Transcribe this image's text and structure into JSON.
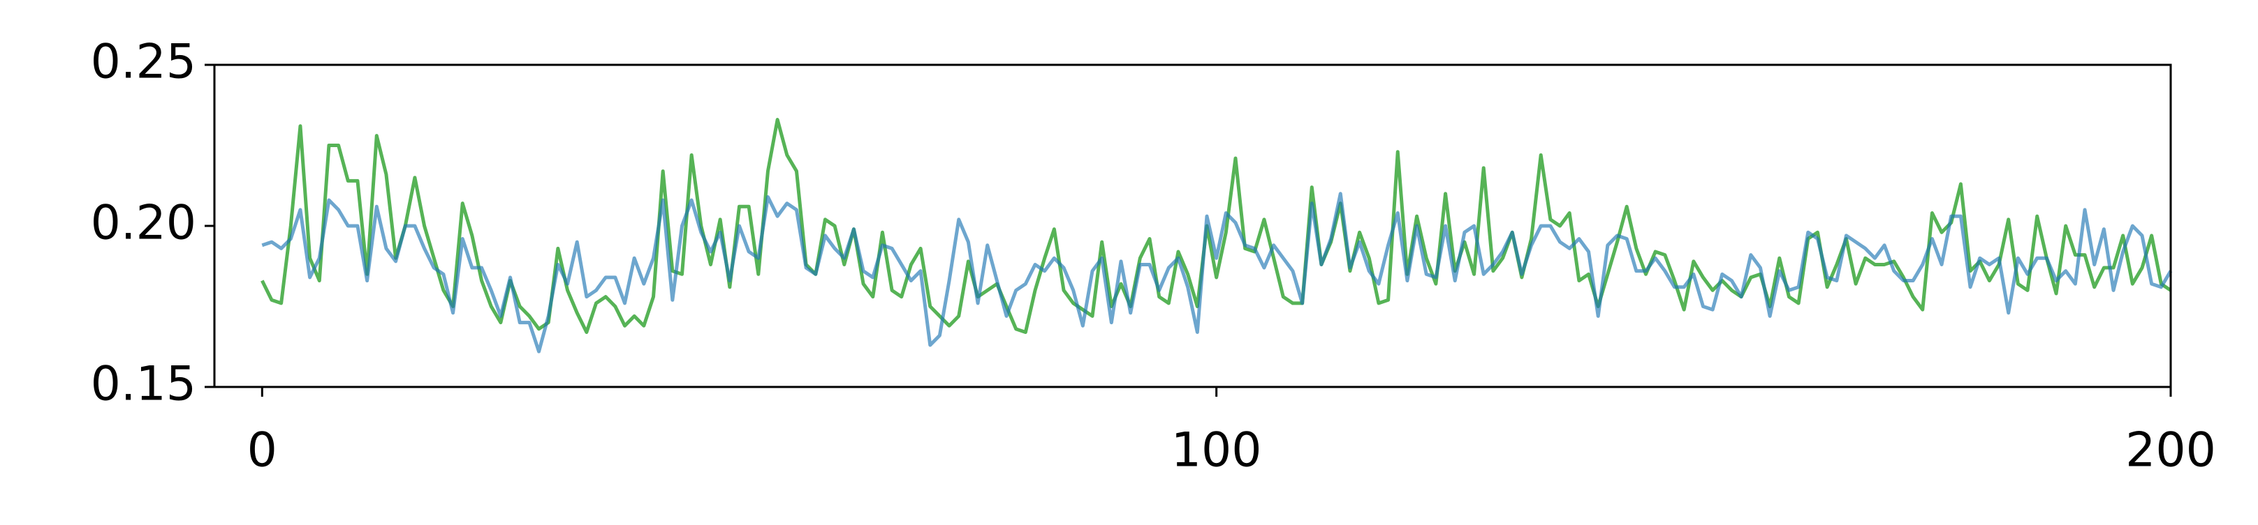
{
  "chart_data": {
    "type": "line",
    "x": [
      0,
      1,
      2,
      3,
      4,
      5,
      6,
      7,
      8,
      9,
      10,
      11,
      12,
      13,
      14,
      15,
      16,
      17,
      18,
      19,
      20,
      21,
      22,
      23,
      24,
      25,
      26,
      27,
      28,
      29,
      30,
      31,
      32,
      33,
      34,
      35,
      36,
      37,
      38,
      39,
      40,
      41,
      42,
      43,
      44,
      45,
      46,
      47,
      48,
      49,
      50,
      51,
      52,
      53,
      54,
      55,
      56,
      57,
      58,
      59,
      60,
      61,
      62,
      63,
      64,
      65,
      66,
      67,
      68,
      69,
      70,
      71,
      72,
      73,
      74,
      75,
      76,
      77,
      78,
      79,
      80,
      81,
      82,
      83,
      84,
      85,
      86,
      87,
      88,
      89,
      90,
      91,
      92,
      93,
      94,
      95,
      96,
      97,
      98,
      99,
      100,
      101,
      102,
      103,
      104,
      105,
      106,
      107,
      108,
      109,
      110,
      111,
      112,
      113,
      114,
      115,
      116,
      117,
      118,
      119,
      120,
      121,
      122,
      123,
      124,
      125,
      126,
      127,
      128,
      129,
      130,
      131,
      132,
      133,
      134,
      135,
      136,
      137,
      138,
      139,
      140,
      141,
      142,
      143,
      144,
      145,
      146,
      147,
      148,
      149,
      150,
      151,
      152,
      153,
      154,
      155,
      156,
      157,
      158,
      159,
      160,
      161,
      162,
      163,
      164,
      165,
      166,
      167,
      168,
      169,
      170,
      171,
      172,
      173,
      174,
      175,
      176,
      177,
      178,
      179,
      180,
      181,
      182,
      183,
      184,
      185,
      186,
      187,
      188,
      189,
      190,
      191,
      192,
      193,
      194,
      195,
      196,
      197,
      198,
      199,
      200
    ],
    "series": [
      {
        "color": "#2ca02c",
        "alpha": 0.8,
        "values": [
          0.183,
          0.177,
          0.176,
          0.2,
          0.231,
          0.19,
          0.183,
          0.225,
          0.225,
          0.214,
          0.214,
          0.185,
          0.228,
          0.216,
          0.19,
          0.2,
          0.215,
          0.2,
          0.19,
          0.18,
          0.175,
          0.207,
          0.197,
          0.183,
          0.175,
          0.17,
          0.183,
          0.175,
          0.172,
          0.168,
          0.17,
          0.193,
          0.18,
          0.173,
          0.167,
          0.176,
          0.178,
          0.175,
          0.169,
          0.172,
          0.169,
          0.178,
          0.217,
          0.186,
          0.185,
          0.222,
          0.2,
          0.188,
          0.202,
          0.181,
          0.206,
          0.206,
          0.185,
          0.217,
          0.233,
          0.222,
          0.217,
          0.188,
          0.185,
          0.202,
          0.2,
          0.188,
          0.199,
          0.182,
          0.178,
          0.198,
          0.18,
          0.178,
          0.188,
          0.193,
          0.175,
          0.172,
          0.169,
          0.172,
          0.189,
          0.178,
          0.18,
          0.182,
          0.175,
          0.168,
          0.167,
          0.18,
          0.19,
          0.199,
          0.18,
          0.176,
          0.174,
          0.172,
          0.195,
          0.175,
          0.182,
          0.175,
          0.19,
          0.196,
          0.178,
          0.176,
          0.192,
          0.185,
          0.175,
          0.2,
          0.184,
          0.198,
          0.221,
          0.193,
          0.192,
          0.202,
          0.19,
          0.178,
          0.176,
          0.176,
          0.212,
          0.188,
          0.195,
          0.207,
          0.186,
          0.198,
          0.19,
          0.176,
          0.177,
          0.223,
          0.185,
          0.203,
          0.19,
          0.182,
          0.21,
          0.186,
          0.195,
          0.185,
          0.218,
          0.186,
          0.19,
          0.198,
          0.184,
          0.196,
          0.222,
          0.202,
          0.2,
          0.204,
          0.183,
          0.185,
          0.175,
          0.185,
          0.195,
          0.206,
          0.193,
          0.185,
          0.192,
          0.191,
          0.183,
          0.174,
          0.189,
          0.184,
          0.18,
          0.183,
          0.18,
          0.178,
          0.184,
          0.185,
          0.175,
          0.19,
          0.178,
          0.176,
          0.196,
          0.198,
          0.181,
          0.188,
          0.196,
          0.182,
          0.19,
          0.188,
          0.188,
          0.189,
          0.184,
          0.178,
          0.174,
          0.204,
          0.198,
          0.201,
          0.213,
          0.186,
          0.189,
          0.183,
          0.188,
          0.202,
          0.182,
          0.18,
          0.203,
          0.19,
          0.179,
          0.2,
          0.191,
          0.191,
          0.181,
          0.187,
          0.187,
          0.197,
          0.182,
          0.187,
          0.197,
          0.182,
          0.18
        ]
      },
      {
        "color": "#1f77b4",
        "alpha": 0.65,
        "values": [
          0.194,
          0.195,
          0.193,
          0.196,
          0.205,
          0.184,
          0.19,
          0.208,
          0.205,
          0.2,
          0.2,
          0.183,
          0.206,
          0.193,
          0.189,
          0.2,
          0.2,
          0.193,
          0.187,
          0.185,
          0.173,
          0.196,
          0.187,
          0.187,
          0.18,
          0.172,
          0.184,
          0.17,
          0.17,
          0.161,
          0.172,
          0.188,
          0.182,
          0.195,
          0.178,
          0.18,
          0.184,
          0.184,
          0.176,
          0.19,
          0.182,
          0.19,
          0.208,
          0.177,
          0.2,
          0.208,
          0.198,
          0.192,
          0.198,
          0.183,
          0.2,
          0.192,
          0.19,
          0.209,
          0.203,
          0.207,
          0.205,
          0.187,
          0.185,
          0.197,
          0.193,
          0.19,
          0.199,
          0.186,
          0.184,
          0.194,
          0.193,
          0.188,
          0.183,
          0.186,
          0.163,
          0.166,
          0.183,
          0.202,
          0.195,
          0.176,
          0.194,
          0.183,
          0.172,
          0.18,
          0.182,
          0.188,
          0.186,
          0.19,
          0.187,
          0.18,
          0.169,
          0.186,
          0.19,
          0.17,
          0.189,
          0.173,
          0.188,
          0.188,
          0.18,
          0.187,
          0.19,
          0.181,
          0.167,
          0.203,
          0.19,
          0.204,
          0.201,
          0.194,
          0.193,
          0.187,
          0.194,
          0.19,
          0.186,
          0.176,
          0.207,
          0.188,
          0.196,
          0.21,
          0.187,
          0.195,
          0.186,
          0.182,
          0.194,
          0.204,
          0.183,
          0.2,
          0.185,
          0.184,
          0.2,
          0.183,
          0.198,
          0.2,
          0.185,
          0.188,
          0.192,
          0.198,
          0.185,
          0.194,
          0.2,
          0.2,
          0.195,
          0.193,
          0.196,
          0.192,
          0.172,
          0.194,
          0.197,
          0.196,
          0.186,
          0.186,
          0.19,
          0.186,
          0.181,
          0.181,
          0.185,
          0.175,
          0.174,
          0.185,
          0.183,
          0.178,
          0.191,
          0.187,
          0.172,
          0.186,
          0.18,
          0.181,
          0.198,
          0.196,
          0.184,
          0.183,
          0.197,
          0.195,
          0.193,
          0.19,
          0.194,
          0.186,
          0.183,
          0.183,
          0.188,
          0.196,
          0.188,
          0.203,
          0.203,
          0.181,
          0.19,
          0.188,
          0.19,
          0.173,
          0.19,
          0.185,
          0.19,
          0.19,
          0.183,
          0.186,
          0.182,
          0.205,
          0.188,
          0.199,
          0.18,
          0.192,
          0.2,
          0.197,
          0.182,
          0.181,
          0.186
        ]
      }
    ],
    "xlim": [
      -5,
      200
    ],
    "xticks": [
      0,
      100,
      200
    ],
    "ylim": [
      0.15,
      0.25
    ],
    "yticks": [
      {
        "value": 0.15,
        "label": "0.15"
      },
      {
        "value": 0.2,
        "label": "0.20"
      },
      {
        "value": 0.25,
        "label": "0.25"
      }
    ],
    "grid": false
  }
}
